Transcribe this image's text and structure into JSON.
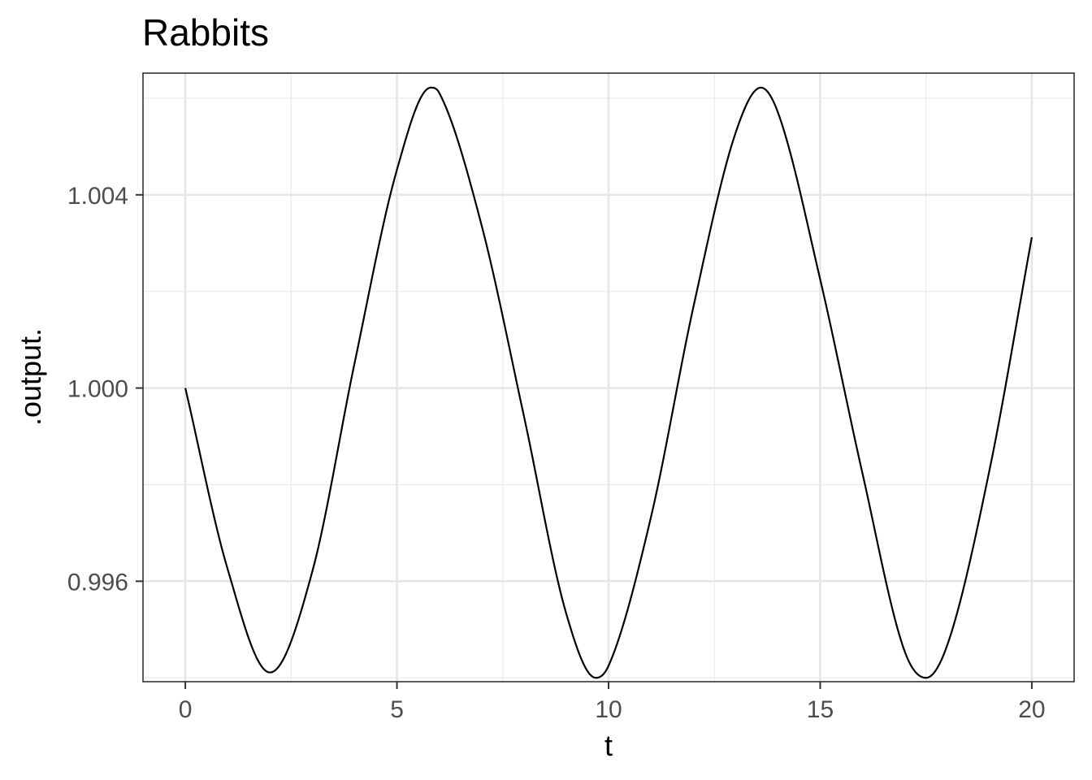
{
  "chart_data": {
    "type": "line",
    "title": "Rabbits",
    "xlabel": "t",
    "ylabel": ".output.",
    "xlim": [
      -1,
      21
    ],
    "ylim": [
      0.99392,
      1.00652
    ],
    "x_ticks": [
      0,
      5,
      10,
      15,
      20
    ],
    "x_tick_labels": [
      "0",
      "5",
      "10",
      "15",
      "20"
    ],
    "y_ticks": [
      0.996,
      1.0,
      1.004
    ],
    "y_tick_labels": [
      "0.996",
      "1.000",
      "1.004"
    ],
    "x_minor_ticks": [
      2.5,
      7.5,
      12.5,
      17.5
    ],
    "y_minor_ticks": [
      0.994,
      0.998,
      1.002,
      1.006
    ],
    "grid": true,
    "line_color": "#000000",
    "series": [
      {
        "x": [
          0,
          1,
          2,
          3,
          4,
          5,
          5.8,
          6,
          7,
          8,
          9,
          9.7,
          10,
          11,
          12,
          13,
          13.6,
          14,
          15,
          16,
          17,
          17.5,
          18,
          19,
          20
        ],
        "values": [
          1.0,
          0.99625,
          0.99411,
          0.9962,
          1.00052,
          1.00452,
          1.00622,
          1.00611,
          1.00337,
          0.99942,
          0.99533,
          0.994,
          0.99425,
          0.99732,
          1.00166,
          1.00528,
          1.00622,
          1.00571,
          1.00225,
          0.99823,
          0.99454,
          0.994,
          0.99467,
          0.9983,
          1.00312
        ]
      }
    ]
  }
}
